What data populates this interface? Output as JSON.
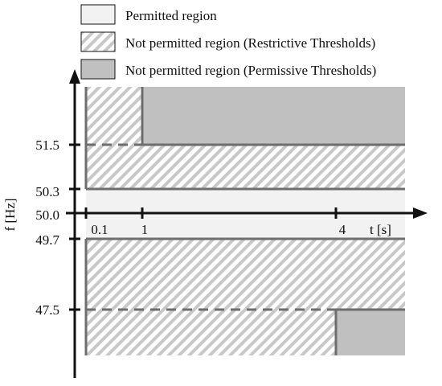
{
  "legend": {
    "permitted": "Permitted region",
    "restrictive": "Not permitted region  (Restrictive Thresholds)",
    "permissive": "Not permitted region  (Permissive Thresholds)"
  },
  "axes": {
    "y_label": "f [Hz]",
    "x_label": "t [s]",
    "y_ticks": [
      "51.5",
      "50.3",
      "50.0",
      "49.7",
      "47.5"
    ],
    "x_ticks": [
      "0.1",
      "1",
      "4"
    ]
  },
  "colors": {
    "permitted_fill": "#f2f2f2",
    "restrictive_hatch": "#c8c8c8",
    "permissive_fill": "#c0c0c0",
    "boundary_line": "#6e6e6e",
    "axis": "#111111"
  }
}
